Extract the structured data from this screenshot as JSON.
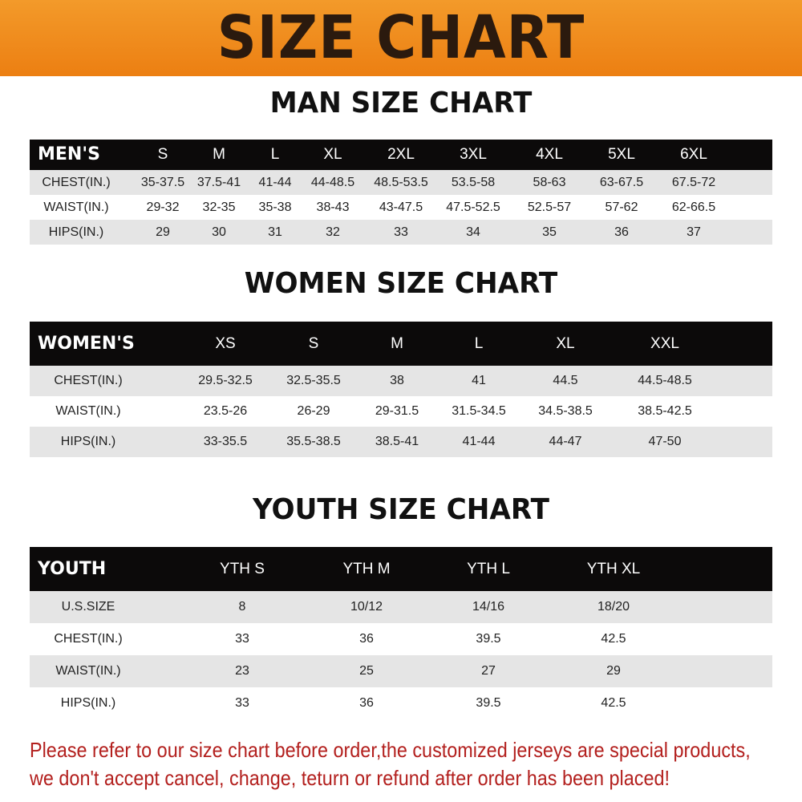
{
  "title": "SIZE CHART",
  "colors": {
    "banner": "#ec7f12",
    "header_bg": "#0c0a0a",
    "stripe": "#e5e5e5",
    "notice": "#b3201e"
  },
  "men": {
    "title": "MAN SIZE CHART",
    "header": [
      "MEN'S",
      "S",
      "M",
      "L",
      "XL",
      "2XL",
      "3XL",
      "4XL",
      "5XL",
      "6XL"
    ],
    "rows": [
      [
        "CHEST(IN.)",
        "35-37.5",
        "37.5-41",
        "41-44",
        "44-48.5",
        "48.5-53.5",
        "53.5-58",
        "58-63",
        "63-67.5",
        "67.5-72"
      ],
      [
        "WAIST(IN.)",
        "29-32",
        "32-35",
        "35-38",
        "38-43",
        "43-47.5",
        "47.5-52.5",
        "52.5-57",
        "57-62",
        "62-66.5"
      ],
      [
        "HIPS(IN.)",
        "29",
        "30",
        "31",
        "32",
        "33",
        "34",
        "35",
        "36",
        "37"
      ]
    ]
  },
  "women": {
    "title": "WOMEN SIZE CHART",
    "header": [
      "WOMEN'S",
      "XS",
      "S",
      "M",
      "L",
      "XL",
      "XXL"
    ],
    "rows": [
      [
        "CHEST(IN.)",
        "29.5-32.5",
        "32.5-35.5",
        "38",
        "41",
        "44.5",
        "44.5-48.5"
      ],
      [
        "WAIST(IN.)",
        "23.5-26",
        "26-29",
        "29-31.5",
        "31.5-34.5",
        "34.5-38.5",
        "38.5-42.5"
      ],
      [
        "HIPS(IN.)",
        "33-35.5",
        "35.5-38.5",
        "38.5-41",
        "41-44",
        "44-47",
        "47-50"
      ]
    ]
  },
  "youth": {
    "title": "YOUTH SIZE CHART",
    "header": [
      "YOUTH",
      "YTH S",
      "YTH M",
      "YTH L",
      "YTH XL"
    ],
    "rows": [
      [
        "U.S.SIZE",
        "8",
        "10/12",
        "14/16",
        "18/20"
      ],
      [
        "CHEST(IN.)",
        "33",
        "36",
        "39.5",
        "42.5"
      ],
      [
        "WAIST(IN.)",
        "23",
        "25",
        "27",
        "29"
      ],
      [
        "HIPS(IN.)",
        "33",
        "36",
        "39.5",
        "42.5"
      ]
    ]
  },
  "notice": {
    "line1": "Please refer to our size chart before order,the customized jerseys are special products,",
    "line2": "we don't accept cancel, change, teturn or refund after order has been placed!"
  }
}
